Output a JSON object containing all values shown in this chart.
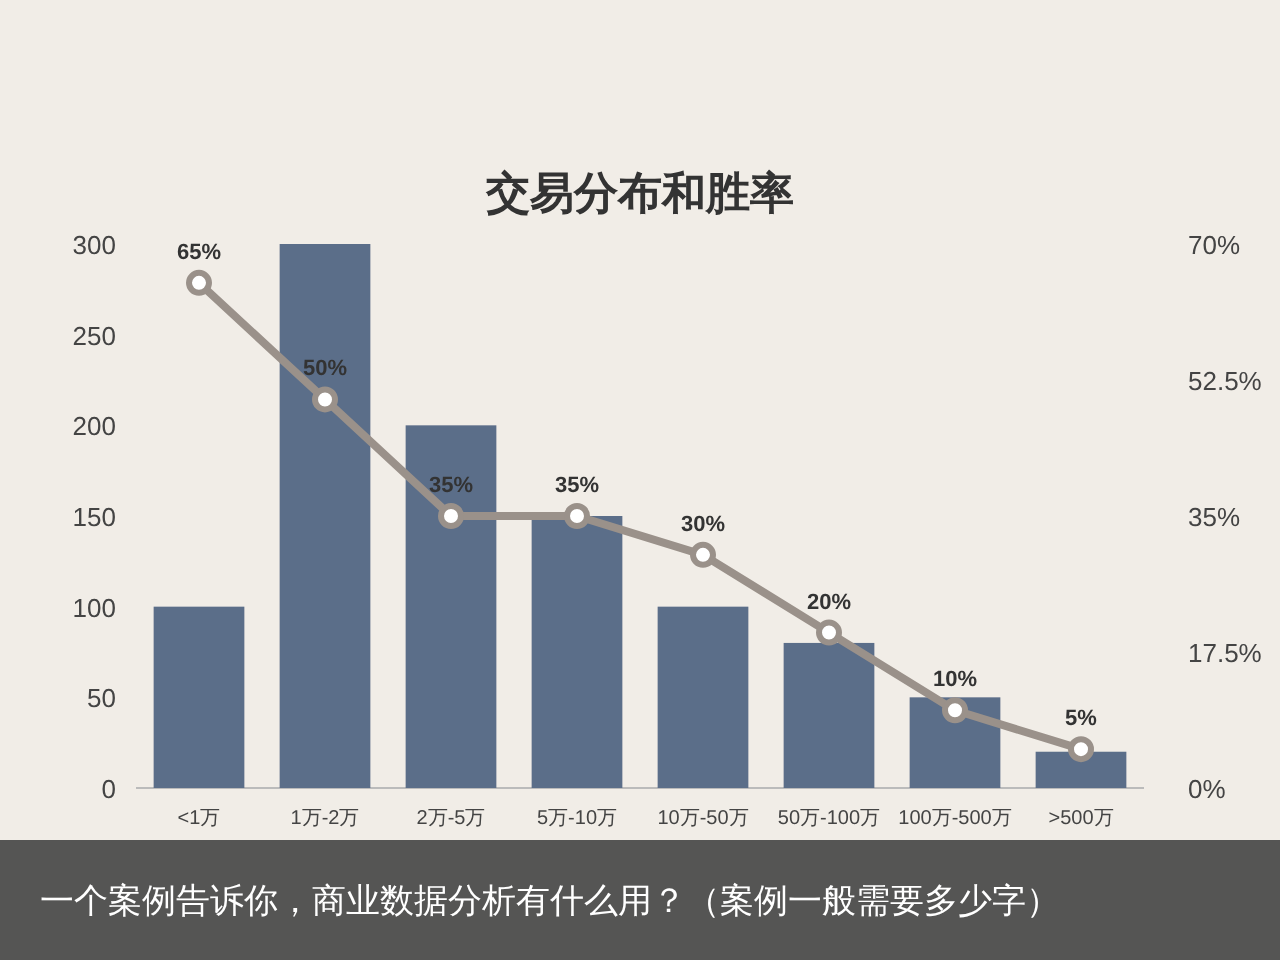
{
  "chart_data": {
    "type": "bar",
    "title": "交易分布和胜率",
    "categories": [
      "<1万",
      "1万-2万",
      "2万-5万",
      "5万-10万",
      "10万-50万",
      "50万-100万",
      "100万-500万",
      ">500万"
    ],
    "series": [
      {
        "color": "#5b6e89",
        "values": [
          100,
          300,
          200,
          150,
          100,
          80,
          50,
          20
        ]
      },
      {
        "type": "line",
        "axis": "y2",
        "color": "#9a918a",
        "marker": "circle",
        "values": [
          65,
          50,
          35,
          35,
          30,
          20,
          10,
          5
        ],
        "value_labels": [
          "65%",
          "50%",
          "35%",
          "35%",
          "30%",
          "20%",
          "10%",
          "5%"
        ]
      }
    ],
    "ylim": [
      0,
      300
    ],
    "yticks": [
      0,
      50,
      100,
      150,
      200,
      250,
      300
    ],
    "y2lim": [
      0,
      70
    ],
    "y2ticks": [
      {
        "value": 0,
        "label": "0%"
      },
      {
        "value": 17.5,
        "label": "17.5%"
      },
      {
        "value": 35,
        "label": "35%"
      },
      {
        "value": 52.5,
        "label": "52.5%"
      },
      {
        "value": 70,
        "label": "70%"
      }
    ],
    "grid": false,
    "annotations": [
      "一个案例告诉你，商业数据分析有什么用？（案例一般需要多少字）"
    ]
  }
}
